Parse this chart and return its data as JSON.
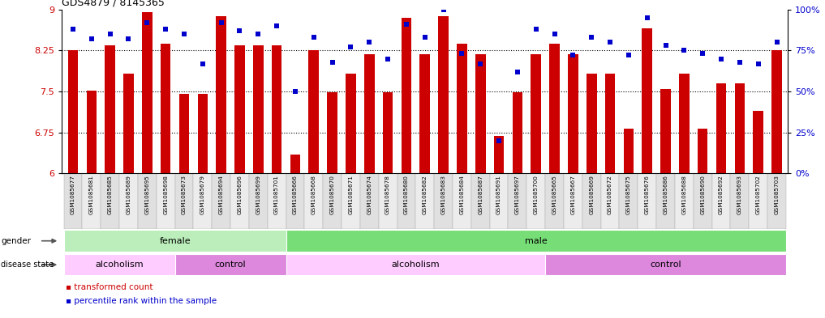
{
  "title": "GDS4879 / 8145365",
  "samples": [
    "GSM1085677",
    "GSM1085681",
    "GSM1085685",
    "GSM1085689",
    "GSM1085695",
    "GSM1085698",
    "GSM1085673",
    "GSM1085679",
    "GSM1085694",
    "GSM1085696",
    "GSM1085699",
    "GSM1085701",
    "GSM1085666",
    "GSM1085668",
    "GSM1085670",
    "GSM1085671",
    "GSM1085674",
    "GSM1085678",
    "GSM1085680",
    "GSM1085682",
    "GSM1085683",
    "GSM1085684",
    "GSM1085687",
    "GSM1085691",
    "GSM1085697",
    "GSM1085700",
    "GSM1085665",
    "GSM1085667",
    "GSM1085669",
    "GSM1085672",
    "GSM1085675",
    "GSM1085676",
    "GSM1085686",
    "GSM1085688",
    "GSM1085690",
    "GSM1085692",
    "GSM1085693",
    "GSM1085702",
    "GSM1085703"
  ],
  "bar_values": [
    8.25,
    7.52,
    8.35,
    7.82,
    8.95,
    8.38,
    7.45,
    7.45,
    8.88,
    8.35,
    8.35,
    8.35,
    6.35,
    8.25,
    7.48,
    7.82,
    8.18,
    7.48,
    8.85,
    8.18,
    8.88,
    8.38,
    8.18,
    6.68,
    7.48,
    8.18,
    8.38,
    8.18,
    7.82,
    7.82,
    6.82,
    8.65,
    7.55,
    7.82,
    6.82,
    7.65,
    7.65,
    7.15,
    8.25
  ],
  "percentile_values": [
    88,
    82,
    85,
    82,
    92,
    88,
    85,
    67,
    92,
    87,
    85,
    90,
    50,
    83,
    68,
    77,
    80,
    70,
    91,
    83,
    100,
    73,
    67,
    20,
    62,
    88,
    85,
    72,
    83,
    80,
    72,
    95,
    78,
    75,
    73,
    70,
    68,
    67,
    80
  ],
  "gender_groups": [
    {
      "label": "female",
      "start": 0,
      "end": 11,
      "color": "#BBEEBB"
    },
    {
      "label": "male",
      "start": 12,
      "end": 38,
      "color": "#77DD77"
    }
  ],
  "disease_groups": [
    {
      "label": "alcoholism",
      "start": 0,
      "end": 5,
      "color": "#FFCCFF"
    },
    {
      "label": "control",
      "start": 6,
      "end": 11,
      "color": "#DD88DD"
    },
    {
      "label": "alcoholism",
      "start": 12,
      "end": 25,
      "color": "#FFCCFF"
    },
    {
      "label": "control",
      "start": 26,
      "end": 38,
      "color": "#DD88DD"
    }
  ],
  "ylim_left": [
    6.0,
    9.0
  ],
  "ylim_right": [
    0,
    100
  ],
  "yticks_left": [
    6.0,
    6.75,
    7.5,
    8.25,
    9.0
  ],
  "yticks_right": [
    0,
    25,
    50,
    75,
    100
  ],
  "bar_color": "#CC0000",
  "percentile_color": "#0000CC",
  "bg_color": "#FFFFFF",
  "ylabel_left_color": "#CC0000",
  "ylabel_right_color": "#0000CC",
  "legend_colors": [
    "#CC0000",
    "#0000CC"
  ]
}
